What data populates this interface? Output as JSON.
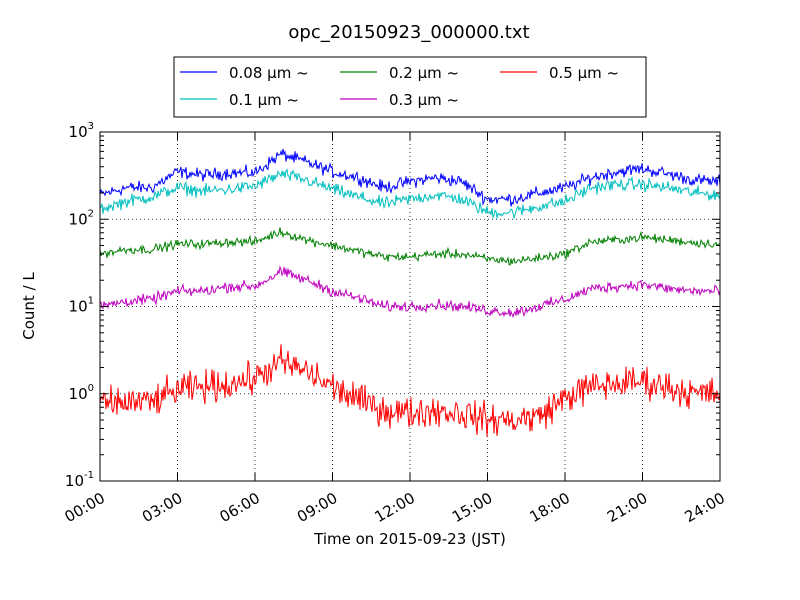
{
  "chart_data": {
    "type": "line",
    "title": "opc_20150923_000000.txt",
    "xlabel": "Time on 2015-09-23 (JST)",
    "ylabel": "Count / L",
    "y_scale": "log",
    "xlim": [
      "00:00",
      "24:00"
    ],
    "ylim": [
      0.1,
      1000
    ],
    "x_ticks": [
      "00:00",
      "03:00",
      "06:00",
      "09:00",
      "12:00",
      "15:00",
      "18:00",
      "21:00",
      "24:00"
    ],
    "y_ticks": [
      {
        "base": "10",
        "exp": "-1"
      },
      {
        "base": "10",
        "exp": "0"
      },
      {
        "base": "10",
        "exp": "1"
      },
      {
        "base": "10",
        "exp": "2"
      },
      {
        "base": "10",
        "exp": "3"
      }
    ],
    "grid": true,
    "legend_position": "top",
    "x": [
      "00:00",
      "01:00",
      "02:00",
      "03:00",
      "04:00",
      "05:00",
      "06:00",
      "07:00",
      "08:00",
      "09:00",
      "10:00",
      "11:00",
      "12:00",
      "13:00",
      "14:00",
      "15:00",
      "16:00",
      "17:00",
      "18:00",
      "19:00",
      "20:00",
      "21:00",
      "22:00",
      "23:00",
      "24:00"
    ],
    "series": [
      {
        "name": "0.08 μm ~",
        "color": "#0000ff",
        "noise": 0.035,
        "values": [
          190,
          230,
          230,
          350,
          320,
          340,
          340,
          560,
          450,
          350,
          300,
          230,
          270,
          300,
          270,
          170,
          170,
          200,
          230,
          300,
          350,
          380,
          330,
          280,
          270
        ]
      },
      {
        "name": "0.1 μm ~",
        "color": "#00bfbf",
        "noise": 0.035,
        "values": [
          130,
          160,
          180,
          230,
          210,
          220,
          240,
          330,
          280,
          220,
          180,
          150,
          170,
          190,
          170,
          120,
          120,
          140,
          160,
          230,
          250,
          250,
          230,
          200,
          190
        ]
      },
      {
        "name": "0.2 μm ~",
        "color": "#008000",
        "noise": 0.025,
        "values": [
          40,
          45,
          45,
          52,
          52,
          55,
          55,
          72,
          58,
          50,
          43,
          37,
          37,
          40,
          40,
          35,
          33,
          36,
          40,
          55,
          58,
          62,
          58,
          54,
          52
        ]
      },
      {
        "name": "0.3 μm ~",
        "color": "#bf00bf",
        "noise": 0.03,
        "values": [
          10,
          11.5,
          12,
          15,
          15,
          17,
          17,
          25,
          20,
          15,
          12.5,
          10,
          10,
          10.5,
          10,
          9,
          8.5,
          10,
          12,
          16,
          17,
          18,
          16,
          15,
          15
        ]
      },
      {
        "name": "0.5 μm ~",
        "color": "#ff0000",
        "noise": 0.09,
        "values": [
          0.75,
          0.8,
          0.8,
          1.1,
          1.2,
          1.3,
          1.5,
          2.3,
          1.8,
          1.2,
          0.85,
          0.65,
          0.6,
          0.65,
          0.6,
          0.5,
          0.5,
          0.55,
          0.9,
          1.2,
          1.3,
          1.4,
          1.2,
          1.0,
          1.0
        ]
      }
    ]
  }
}
